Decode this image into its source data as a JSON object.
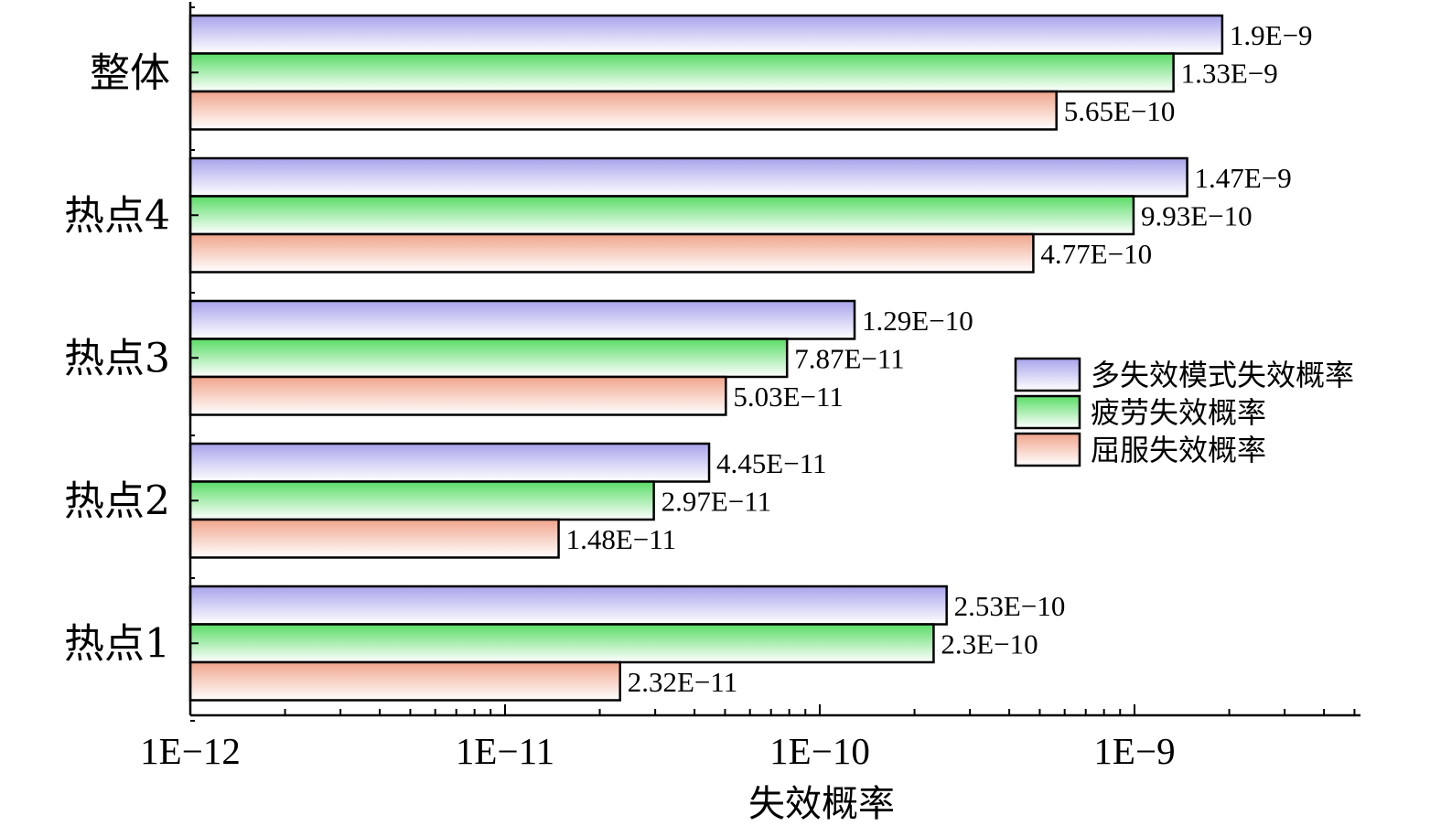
{
  "chart_data": {
    "type": "bar",
    "orientation": "horizontal",
    "title": "",
    "xlabel": "失效概率",
    "ylabel": "",
    "x_scale": "log",
    "xlim": [
      1e-12,
      5e-09
    ],
    "x_tick_values": [
      1e-12,
      1e-11,
      1e-10,
      1e-09
    ],
    "x_tick_labels": [
      "1E−12",
      "1E−11",
      "1E−10",
      "1E−9"
    ],
    "categories": [
      "整体",
      "热点4",
      "热点3",
      "热点2",
      "热点1"
    ],
    "series": [
      {
        "name": "多失效模式失效概率",
        "color": "#b9b5ef",
        "values": [
          1.9e-09,
          1.47e-09,
          1.29e-10,
          4.45e-11,
          2.53e-10
        ],
        "labels": [
          "1.9E−9",
          "1.47E−9",
          "1.29E−10",
          "4.45E−11",
          "2.53E−10"
        ]
      },
      {
        "name": "疲劳失效概率",
        "color": "#74e07d",
        "values": [
          1.33e-09,
          9.93e-10,
          7.87e-11,
          2.97e-11,
          2.3e-10
        ],
        "labels": [
          "1.33E−9",
          "9.93E−10",
          "7.87E−11",
          "2.97E−11",
          "2.3E−10"
        ]
      },
      {
        "name": "屈服失效概率",
        "color": "#f2b5a0",
        "values": [
          5.65e-10,
          4.77e-10,
          5.03e-11,
          1.48e-11,
          2.32e-11
        ],
        "labels": [
          "5.65E−10",
          "4.77E−10",
          "5.03E−11",
          "1.48E−11",
          "2.32E−11"
        ]
      }
    ],
    "legend": "right",
    "grid": false
  }
}
